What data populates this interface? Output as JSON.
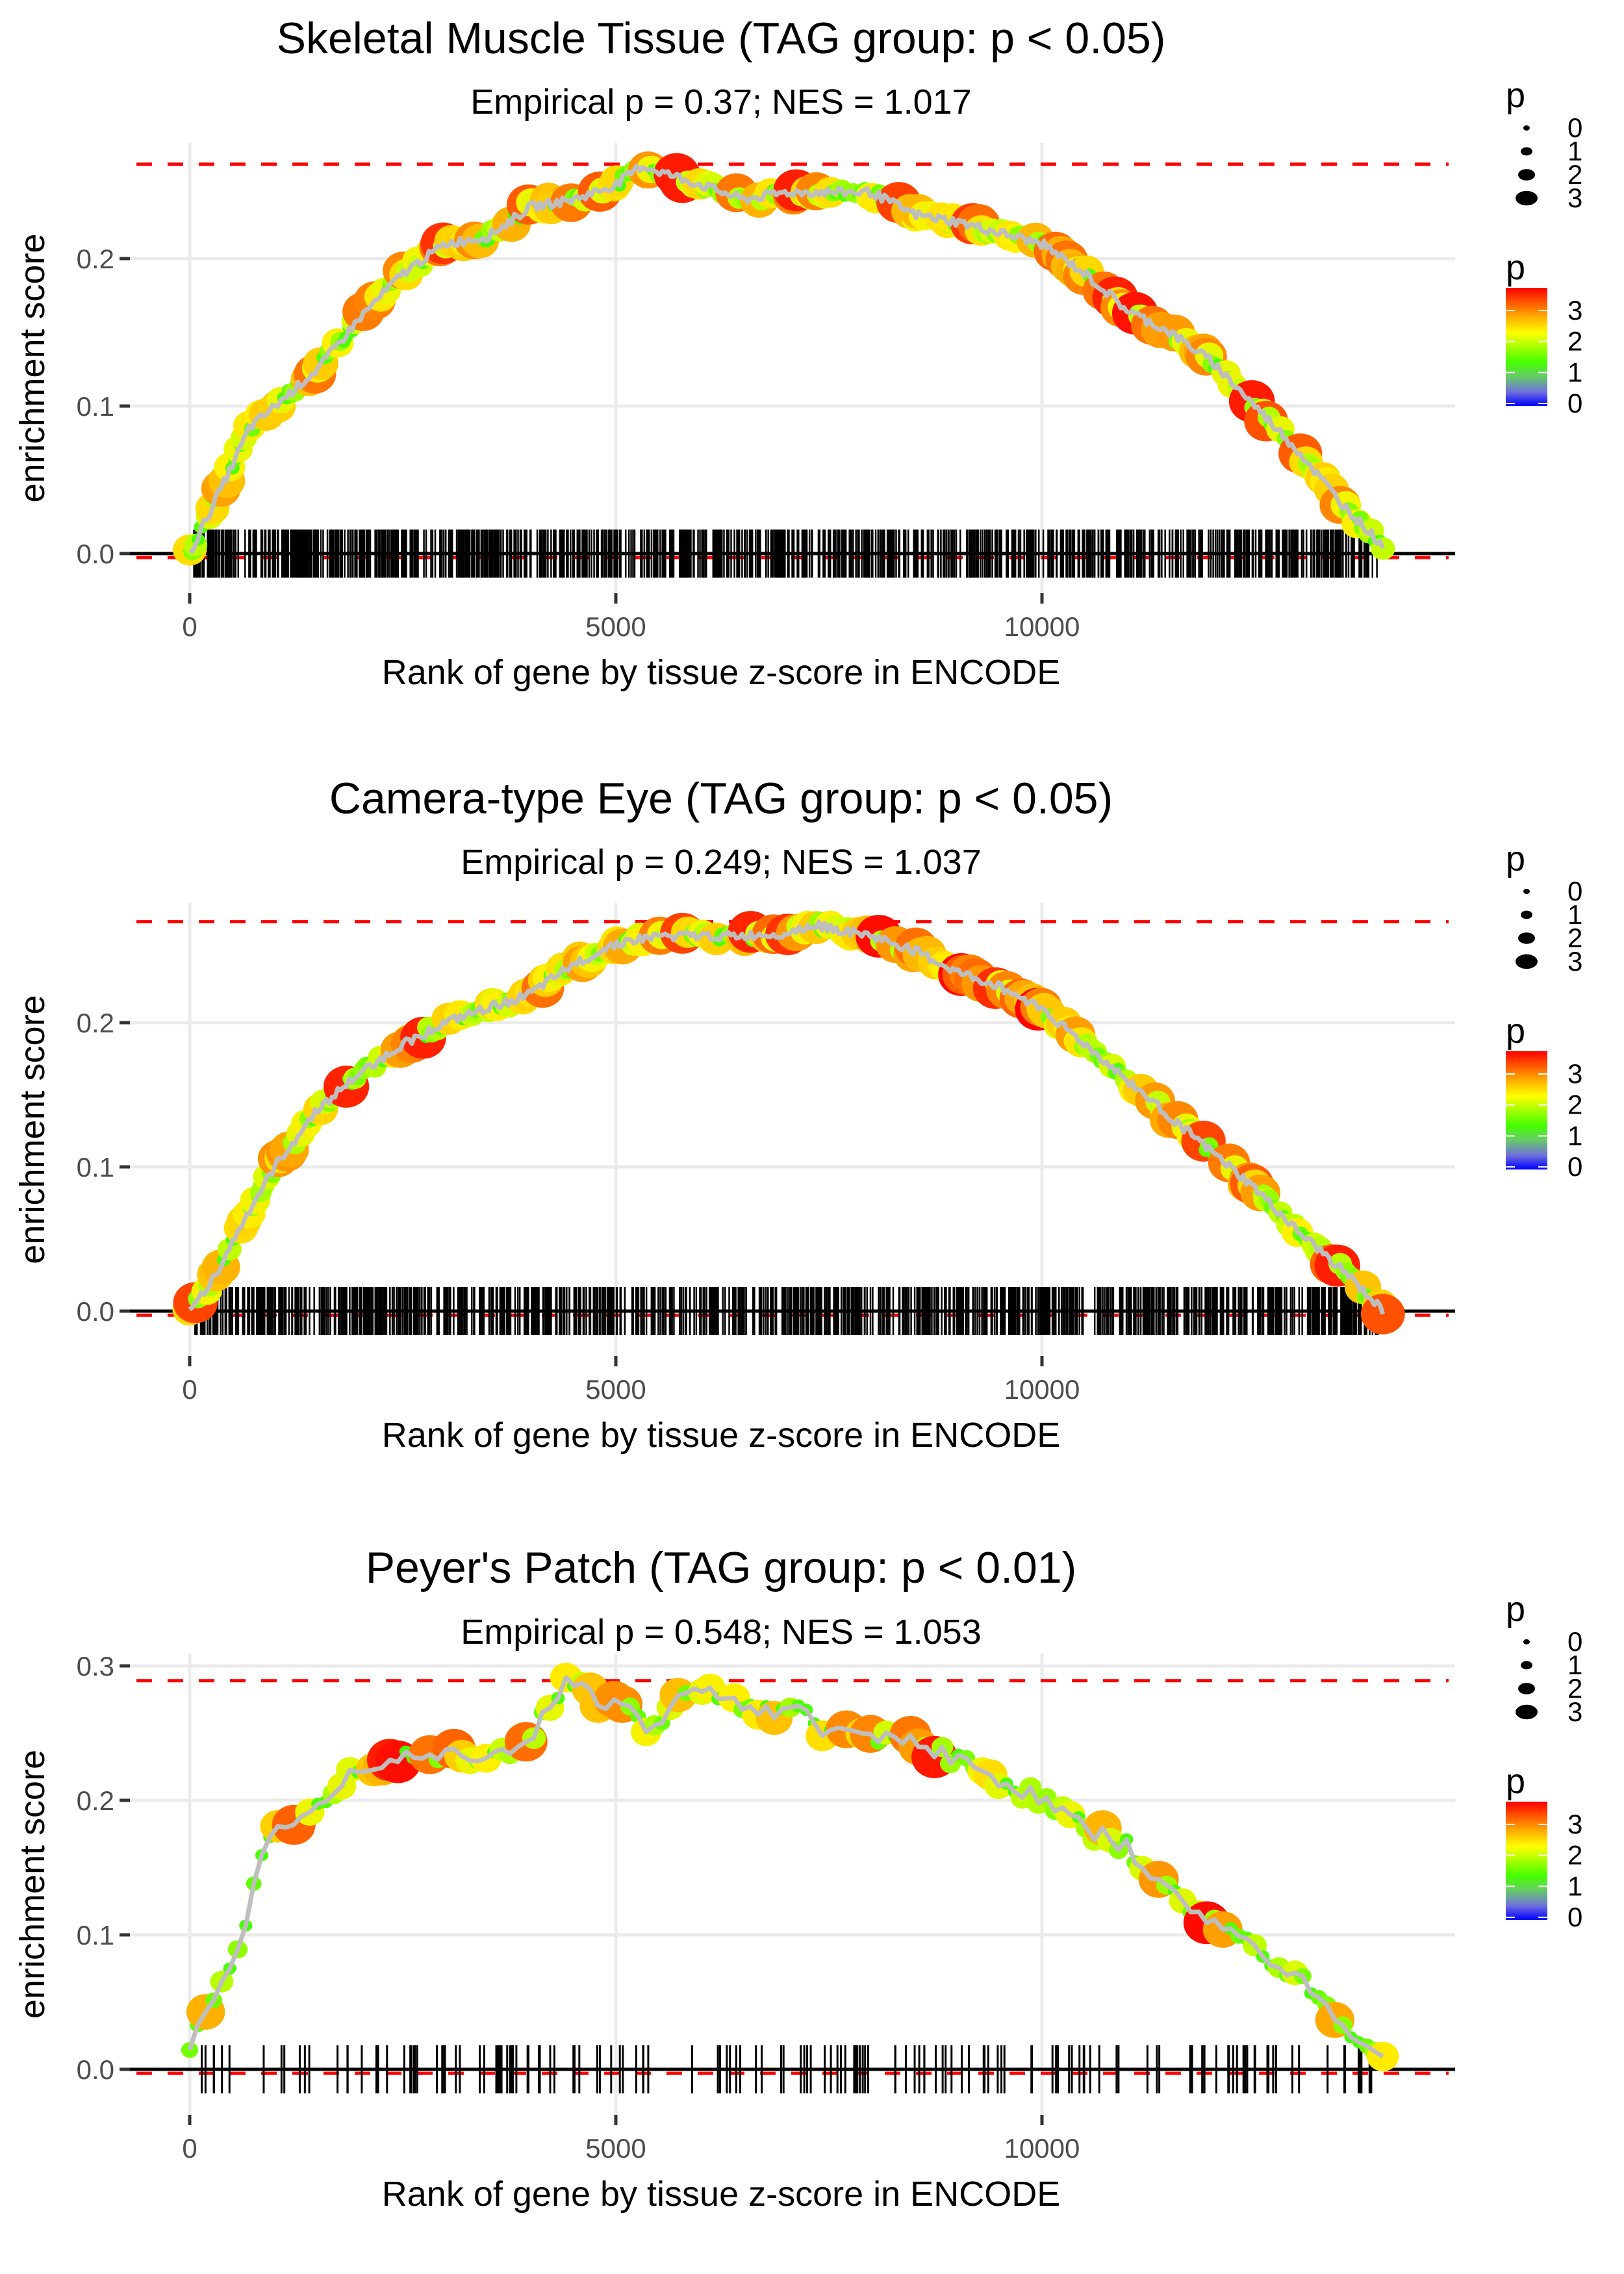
{
  "chart_data": [
    {
      "type": "line",
      "title": "Skeletal Muscle Tissue (TAG group: p < 0.05)",
      "subtitle": "Empirical p = 0.37; NES = 1.017",
      "xlabel": "Rank of gene by tissue z-score in ENCODE",
      "ylabel": "enrichment score",
      "xlim": [
        -700,
        14800
      ],
      "ylim": [
        -0.03,
        0.275
      ],
      "x_ticks": [
        0,
        5000,
        10000
      ],
      "x_tick_labels": [
        "0",
        "5000",
        "10000"
      ],
      "y_ticks": [
        0.0,
        0.1,
        0.2
      ],
      "y_tick_labels": [
        "0.0",
        "0.1",
        "0.2"
      ],
      "max_es_line": 0.264,
      "min_es_line": -0.001,
      "grid": true,
      "barcode_density": "dense",
      "series": [
        {
          "name": "running enrichment score",
          "x": [
            0,
            250,
            500,
            700,
            1000,
            1500,
            2000,
            2500,
            3000,
            3500,
            4000,
            4500,
            5000,
            5300,
            6000,
            6500,
            7000,
            7500,
            8000,
            8500,
            9000,
            10000,
            10500,
            11000,
            11500,
            12000,
            12500,
            13000,
            13500,
            14000
          ],
          "y": [
            0,
            0.03,
            0.06,
            0.085,
            0.1,
            0.125,
            0.16,
            0.19,
            0.21,
            0.215,
            0.235,
            0.24,
            0.25,
            0.263,
            0.25,
            0.24,
            0.245,
            0.245,
            0.245,
            0.23,
            0.225,
            0.21,
            0.19,
            0.165,
            0.15,
            0.13,
            0.1,
            0.07,
            0.035,
            0.005
          ]
        }
      ]
    },
    {
      "type": "line",
      "title": "Camera-type Eye (TAG group: p < 0.05)",
      "subtitle": "Empirical p = 0.249; NES = 1.037",
      "xlabel": "Rank of gene by tissue z-score in ENCODE",
      "ylabel": "enrichment score",
      "xlim": [
        -700,
        14800
      ],
      "ylim": [
        -0.03,
        0.28
      ],
      "x_ticks": [
        0,
        5000,
        10000
      ],
      "x_tick_labels": [
        "0",
        "5000",
        "10000"
      ],
      "y_ticks": [
        0.0,
        0.1,
        0.2
      ],
      "y_tick_labels": [
        "0.0",
        "0.1",
        "0.2"
      ],
      "max_es_line": 0.27,
      "min_es_line": -0.001,
      "grid": true,
      "barcode_density": "dense",
      "series": [
        {
          "name": "running enrichment score",
          "x": [
            0,
            300,
            700,
            1000,
            1500,
            2000,
            2500,
            3000,
            3500,
            4000,
            4500,
            5000,
            5500,
            6000,
            6500,
            7000,
            7300,
            8000,
            8500,
            9000,
            9500,
            10000,
            10500,
            11000,
            11500,
            12000,
            12500,
            13000,
            13500,
            14000
          ],
          "y": [
            0,
            0.025,
            0.07,
            0.1,
            0.14,
            0.165,
            0.185,
            0.2,
            0.21,
            0.22,
            0.24,
            0.255,
            0.26,
            0.26,
            0.26,
            0.262,
            0.268,
            0.26,
            0.25,
            0.235,
            0.225,
            0.21,
            0.185,
            0.16,
            0.135,
            0.11,
            0.085,
            0.055,
            0.03,
            0.0
          ]
        }
      ]
    },
    {
      "type": "line",
      "title": "Peyer's Patch (TAG group: p < 0.01)",
      "subtitle": "Empirical p = 0.548; NES = 1.053",
      "xlabel": "Rank of gene by tissue z-score in ENCODE",
      "ylabel": "enrichment score",
      "xlim": [
        -700,
        14800
      ],
      "ylim": [
        -0.033,
        0.31
      ],
      "x_ticks": [
        0,
        5000,
        10000
      ],
      "x_tick_labels": [
        "0",
        "5000",
        "10000"
      ],
      "y_ticks": [
        0.0,
        0.1,
        0.2,
        0.3
      ],
      "y_tick_labels": [
        "0.0",
        "0.1",
        "0.2",
        "0.3"
      ],
      "max_es_line": 0.289,
      "min_es_line": -0.001,
      "grid": true,
      "barcode_density": "sparse",
      "series": [
        {
          "name": "running enrichment score",
          "x": [
            0,
            100,
            300,
            500,
            700,
            850,
            950,
            1300,
            2000,
            2500,
            3000,
            3500,
            4000,
            4400,
            4800,
            5100,
            5400,
            5800,
            6200,
            6800,
            7200,
            7500,
            8000,
            8500,
            9000,
            9500,
            10000,
            10500,
            11000,
            11500,
            12000,
            12500,
            13000,
            13500,
            14000
          ],
          "y": [
            0.01,
            0.03,
            0.05,
            0.08,
            0.12,
            0.16,
            0.18,
            0.19,
            0.225,
            0.235,
            0.235,
            0.235,
            0.245,
            0.29,
            0.275,
            0.27,
            0.25,
            0.28,
            0.28,
            0.265,
            0.265,
            0.25,
            0.25,
            0.245,
            0.23,
            0.215,
            0.2,
            0.18,
            0.165,
            0.13,
            0.11,
            0.09,
            0.07,
            0.035,
            0.005
          ]
        }
      ]
    }
  ],
  "legend": {
    "size_title": "p",
    "size_labels": [
      "0",
      "1",
      "2",
      "3"
    ],
    "color_title": "p",
    "color_labels": [
      "3",
      "2",
      "1",
      "0"
    ],
    "color_stops": [
      "#ff0000",
      "#ff8c00",
      "#ffff00",
      "#44ff00",
      "#7f8f7f",
      "#0000ff"
    ]
  }
}
